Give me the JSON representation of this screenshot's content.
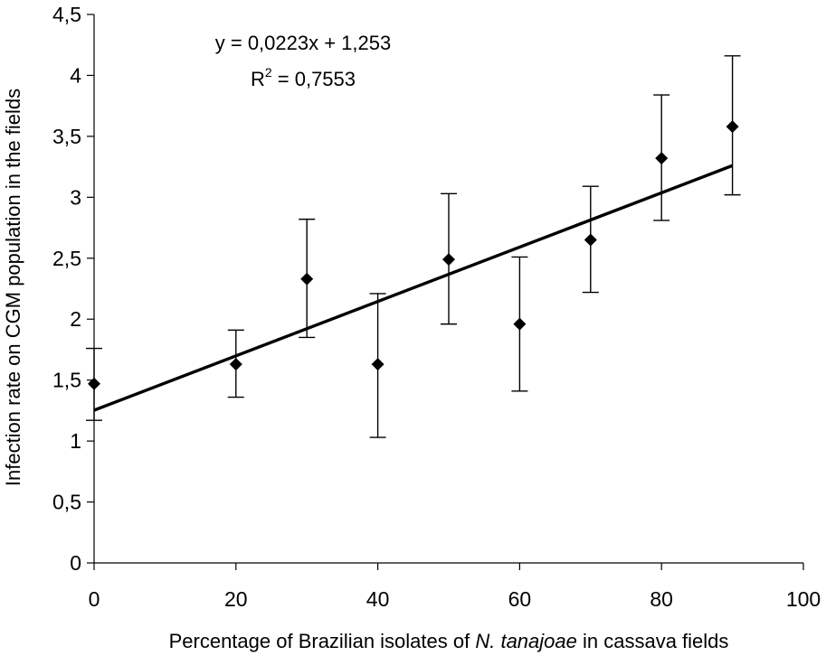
{
  "chart_data": {
    "type": "scatter",
    "xlabel": {
      "prefix": "Percentage of Brazilian isolates of ",
      "italic": "N. tanajoae",
      "suffix": " in cassava fields"
    },
    "ylabel": "Infection rate on CGM population in the fields",
    "xlim": [
      0,
      100
    ],
    "ylim": [
      0,
      4.5
    ],
    "x_ticks": [
      0,
      20,
      40,
      60,
      80,
      100
    ],
    "x_tick_labels": [
      "0",
      "20",
      "40",
      "60",
      "80",
      "100"
    ],
    "y_ticks": [
      0,
      0.5,
      1,
      1.5,
      2,
      2.5,
      3,
      3.5,
      4,
      4.5
    ],
    "y_tick_labels": [
      "0",
      "0,5",
      "1",
      "1,5",
      "2",
      "2,5",
      "3",
      "3,5",
      "4",
      "4,5"
    ],
    "points": [
      {
        "x": 0,
        "y": 1.47,
        "err_low": 1.17,
        "err_high": 1.76
      },
      {
        "x": 20,
        "y": 1.63,
        "err_low": 1.36,
        "err_high": 1.91
      },
      {
        "x": 30,
        "y": 2.33,
        "err_low": 1.85,
        "err_high": 2.82
      },
      {
        "x": 40,
        "y": 1.63,
        "err_low": 1.03,
        "err_high": 2.21
      },
      {
        "x": 50,
        "y": 2.49,
        "err_low": 1.96,
        "err_high": 3.03
      },
      {
        "x": 60,
        "y": 1.96,
        "err_low": 1.41,
        "err_high": 2.51
      },
      {
        "x": 70,
        "y": 2.65,
        "err_low": 2.22,
        "err_high": 3.09
      },
      {
        "x": 80,
        "y": 3.32,
        "err_low": 2.81,
        "err_high": 3.84
      },
      {
        "x": 90,
        "y": 3.58,
        "err_low": 3.02,
        "err_high": 4.16
      }
    ],
    "trendline": {
      "slope": 0.0223,
      "intercept": 1.253,
      "x_range": [
        0,
        90
      ]
    },
    "equation": "y = 0,0223x + 1,253",
    "r2": {
      "base": "R",
      "exponent": "2",
      "rest": " = 0,7553"
    },
    "grid": false,
    "legend": "none",
    "colors": {
      "marks": "#000000",
      "background": "#ffffff"
    }
  }
}
